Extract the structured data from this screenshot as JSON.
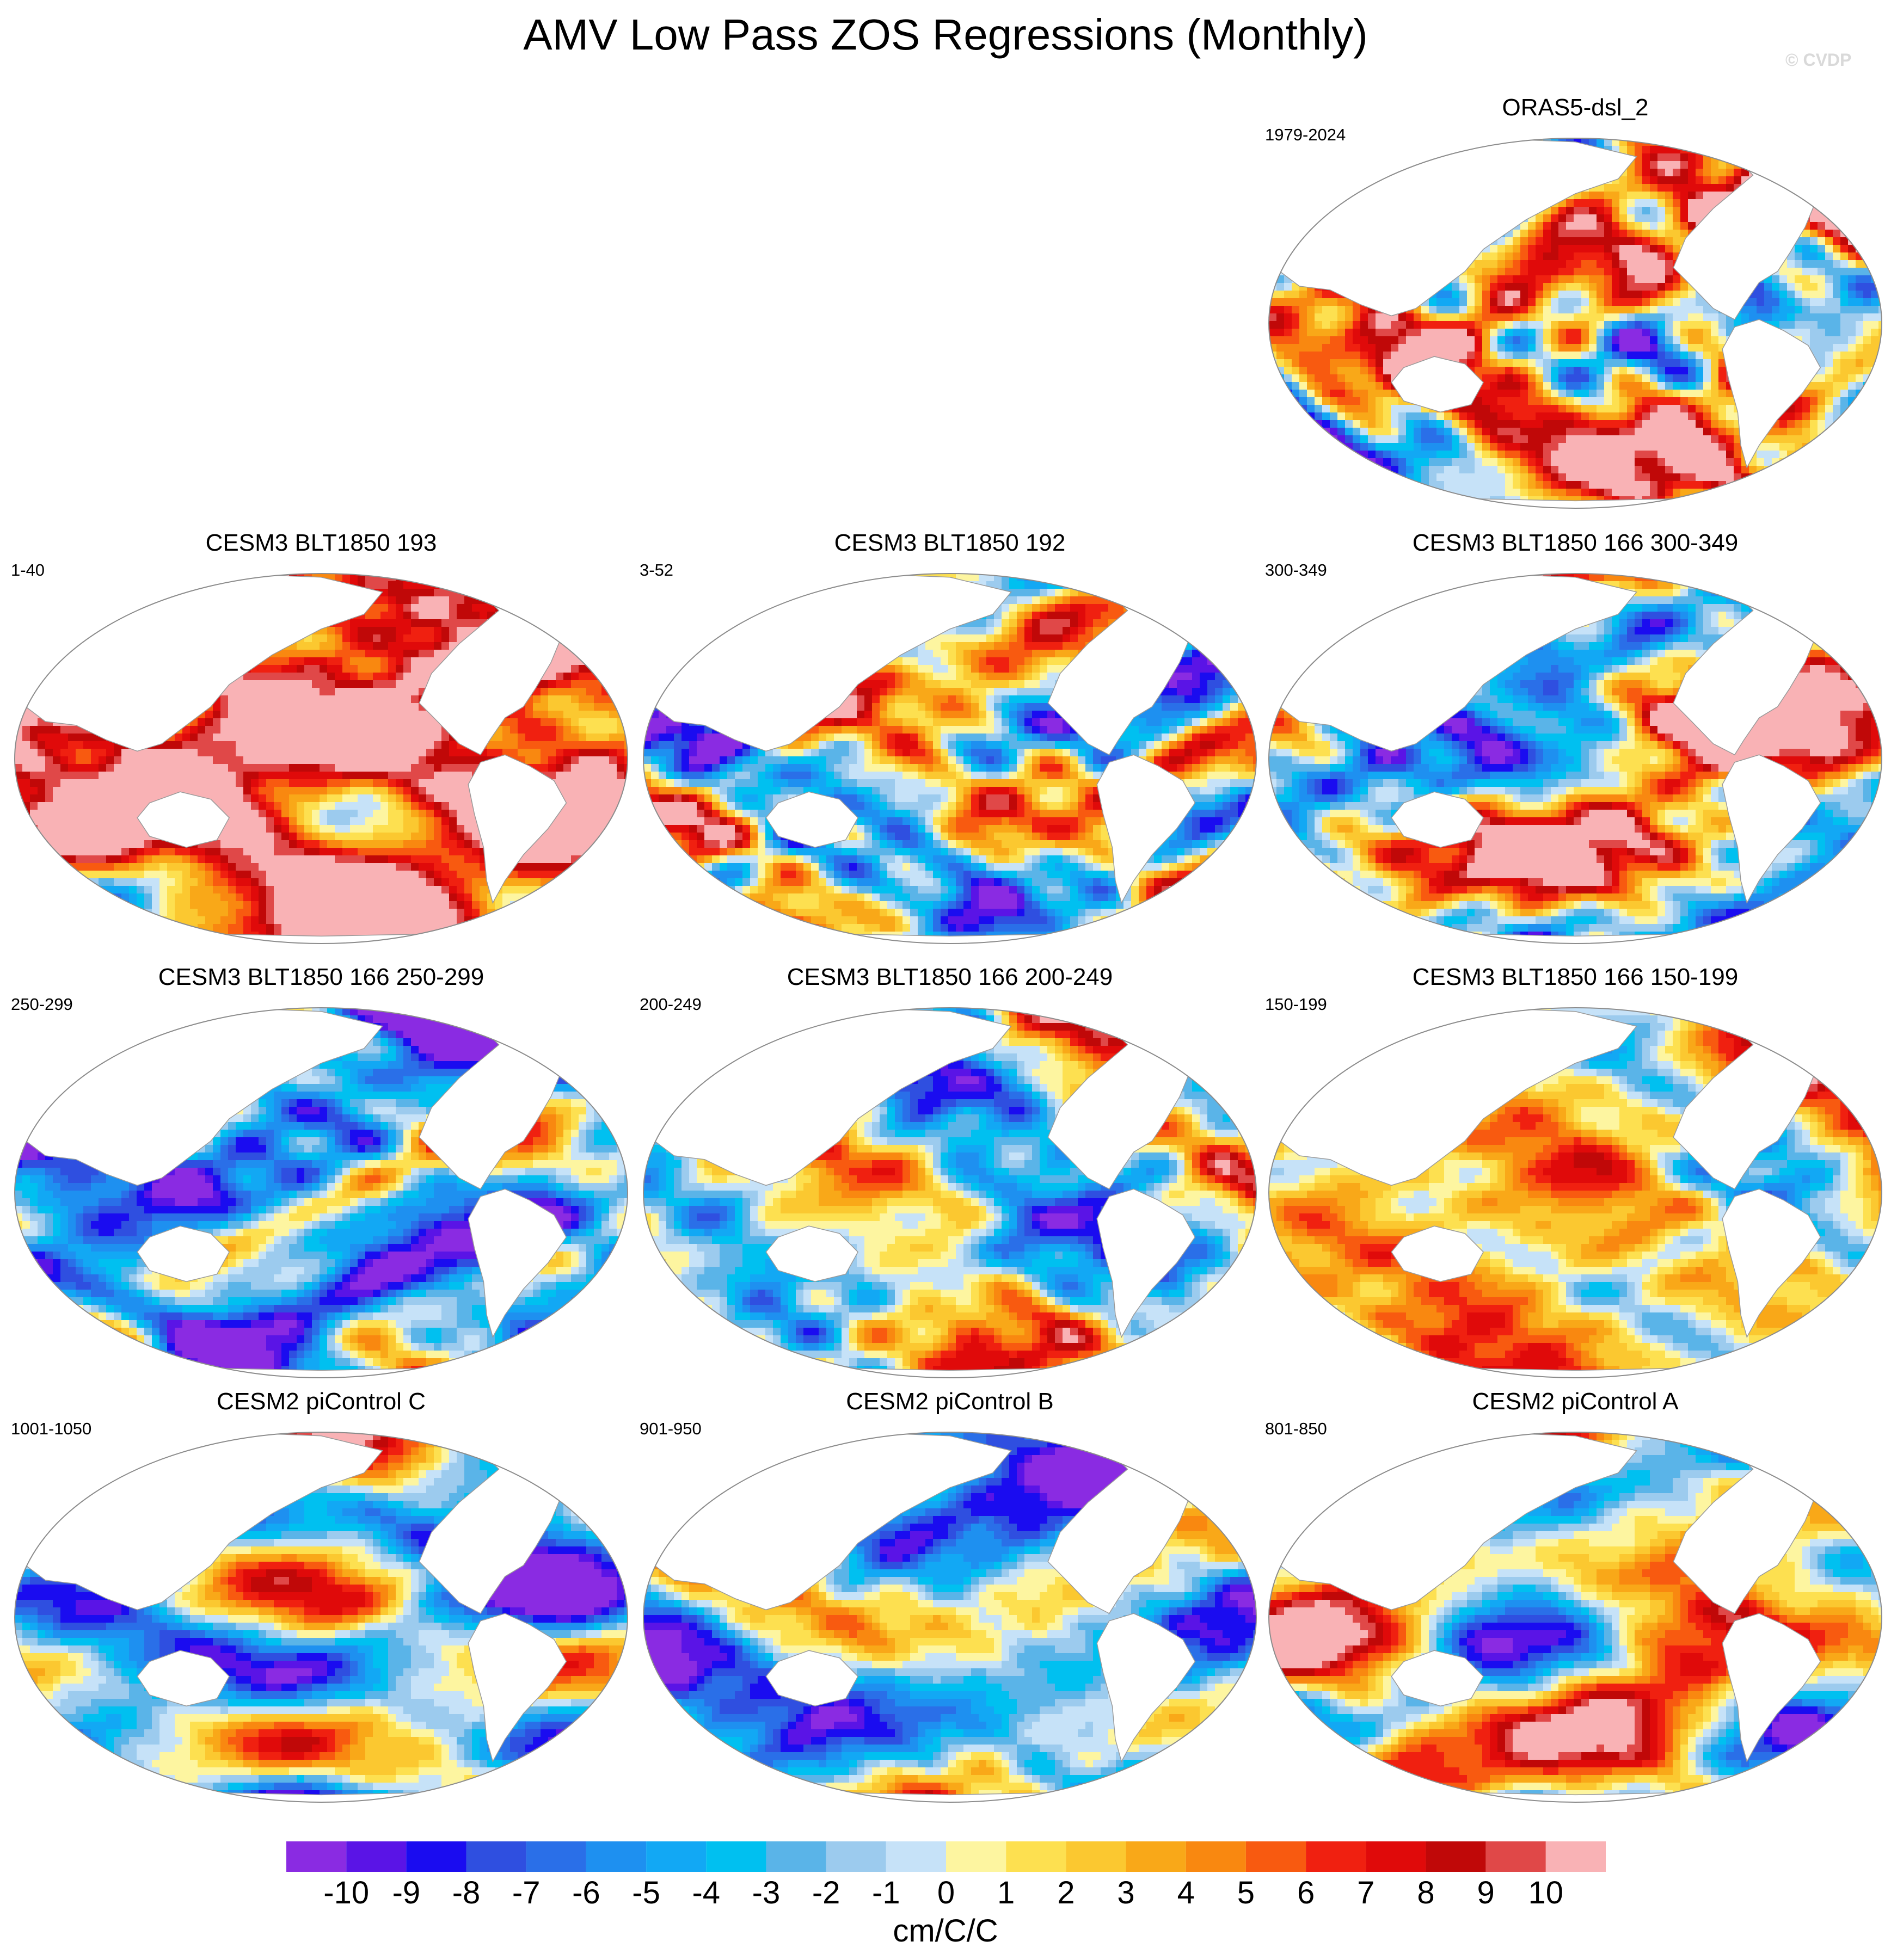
{
  "title": "AMV Low Pass ZOS Regressions (Monthly)",
  "watermark": "© CVDP",
  "panels": [
    {
      "title": "ORAS5-dsl_2",
      "years": "1979-2024",
      "variant": 0
    },
    {
      "title": "CESM3 BLT1850 193",
      "years": "1-40",
      "variant": 1
    },
    {
      "title": "CESM3 BLT1850 192",
      "years": "3-52",
      "variant": 2
    },
    {
      "title": "CESM3 BLT1850 166 300-349",
      "years": "300-349",
      "variant": 3
    },
    {
      "title": "CESM3 BLT1850 166 250-299",
      "years": "250-299",
      "variant": 4
    },
    {
      "title": "CESM3 BLT1850 166 200-249",
      "years": "200-249",
      "variant": 5
    },
    {
      "title": "CESM3 BLT1850 166 150-199",
      "years": "150-199",
      "variant": 6
    },
    {
      "title": "CESM2 piControl C",
      "years": "1001-1050",
      "variant": 7
    },
    {
      "title": "CESM2 piControl B",
      "years": "901-950",
      "variant": 8
    },
    {
      "title": "CESM2 piControl A",
      "years": "801-850",
      "variant": 9
    }
  ],
  "colorbar": {
    "units": "cm/C/C",
    "tick_labels": [
      "-10",
      "-9",
      "-8",
      "-7",
      "-6",
      "-5",
      "-4",
      "-3",
      "-2",
      "-1",
      "0",
      "1",
      "2",
      "3",
      "4",
      "5",
      "6",
      "7",
      "8",
      "9",
      "10"
    ],
    "colors": [
      "#8a2be2",
      "#5a14e6",
      "#1a0cf0",
      "#2f4fe0",
      "#2a6fe8",
      "#1e90f0",
      "#12a8f4",
      "#00c0f0",
      "#5ab4e8",
      "#9ccbee",
      "#c6e2f8",
      "#fdf5a0",
      "#fde050",
      "#fbc830",
      "#f9a818",
      "#f98810",
      "#f85a10",
      "#f02010",
      "#e00a0a",
      "#c00808",
      "#e04848",
      "#f9b2b5"
    ]
  },
  "chart_data": {
    "type": "heatmap",
    "title": "AMV Low Pass ZOS Regressions (Monthly)",
    "map_projection": "global Robinson-like, Pacific-centered",
    "color_scale": {
      "min": -10,
      "max": 10,
      "step": 1,
      "units": "cm/C/C",
      "extends": "both"
    },
    "panels": [
      {
        "name": "ORAS5-dsl_2",
        "years": "1979-2024"
      },
      {
        "name": "CESM3 BLT1850 193",
        "years": "1-40"
      },
      {
        "name": "CESM3 BLT1850 192",
        "years": "3-52"
      },
      {
        "name": "CESM3 BLT1850 166 300-349",
        "years": "300-349"
      },
      {
        "name": "CESM3 BLT1850 166 250-299",
        "years": "250-299"
      },
      {
        "name": "CESM3 BLT1850 166 200-249",
        "years": "200-249"
      },
      {
        "name": "CESM3 BLT1850 166 150-199",
        "years": "150-199"
      },
      {
        "name": "CESM2 piControl C",
        "years": "1001-1050"
      },
      {
        "name": "CESM2 piControl B",
        "years": "901-950"
      },
      {
        "name": "CESM2 piControl A",
        "years": "801-850"
      }
    ]
  }
}
